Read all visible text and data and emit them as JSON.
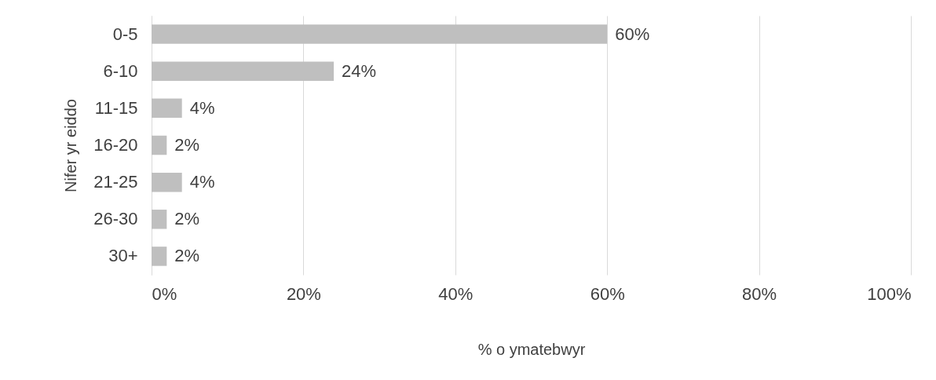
{
  "chart_data": {
    "type": "bar",
    "orientation": "horizontal",
    "xlabel": "% o ymatebwyr",
    "ylabel": "Nifer yr eiddo",
    "categories": [
      "0-5",
      "6-10",
      "11-15",
      "16-20",
      "21-25",
      "26-30",
      "30+"
    ],
    "values": [
      60,
      24,
      4,
      2,
      4,
      2,
      2
    ],
    "value_labels": [
      "60%",
      "24%",
      "4%",
      "2%",
      "4%",
      "2%",
      "2%"
    ],
    "color": "#bfbfbf",
    "xlim": [
      0,
      100
    ],
    "xticks": [
      {
        "value": 0,
        "label": "0%"
      },
      {
        "value": 20,
        "label": "20%"
      },
      {
        "value": 40,
        "label": "40%"
      },
      {
        "value": 60,
        "label": "60%"
      },
      {
        "value": 80,
        "label": "80%"
      },
      {
        "value": 100,
        "label": "100%"
      }
    ],
    "grid": "x"
  }
}
